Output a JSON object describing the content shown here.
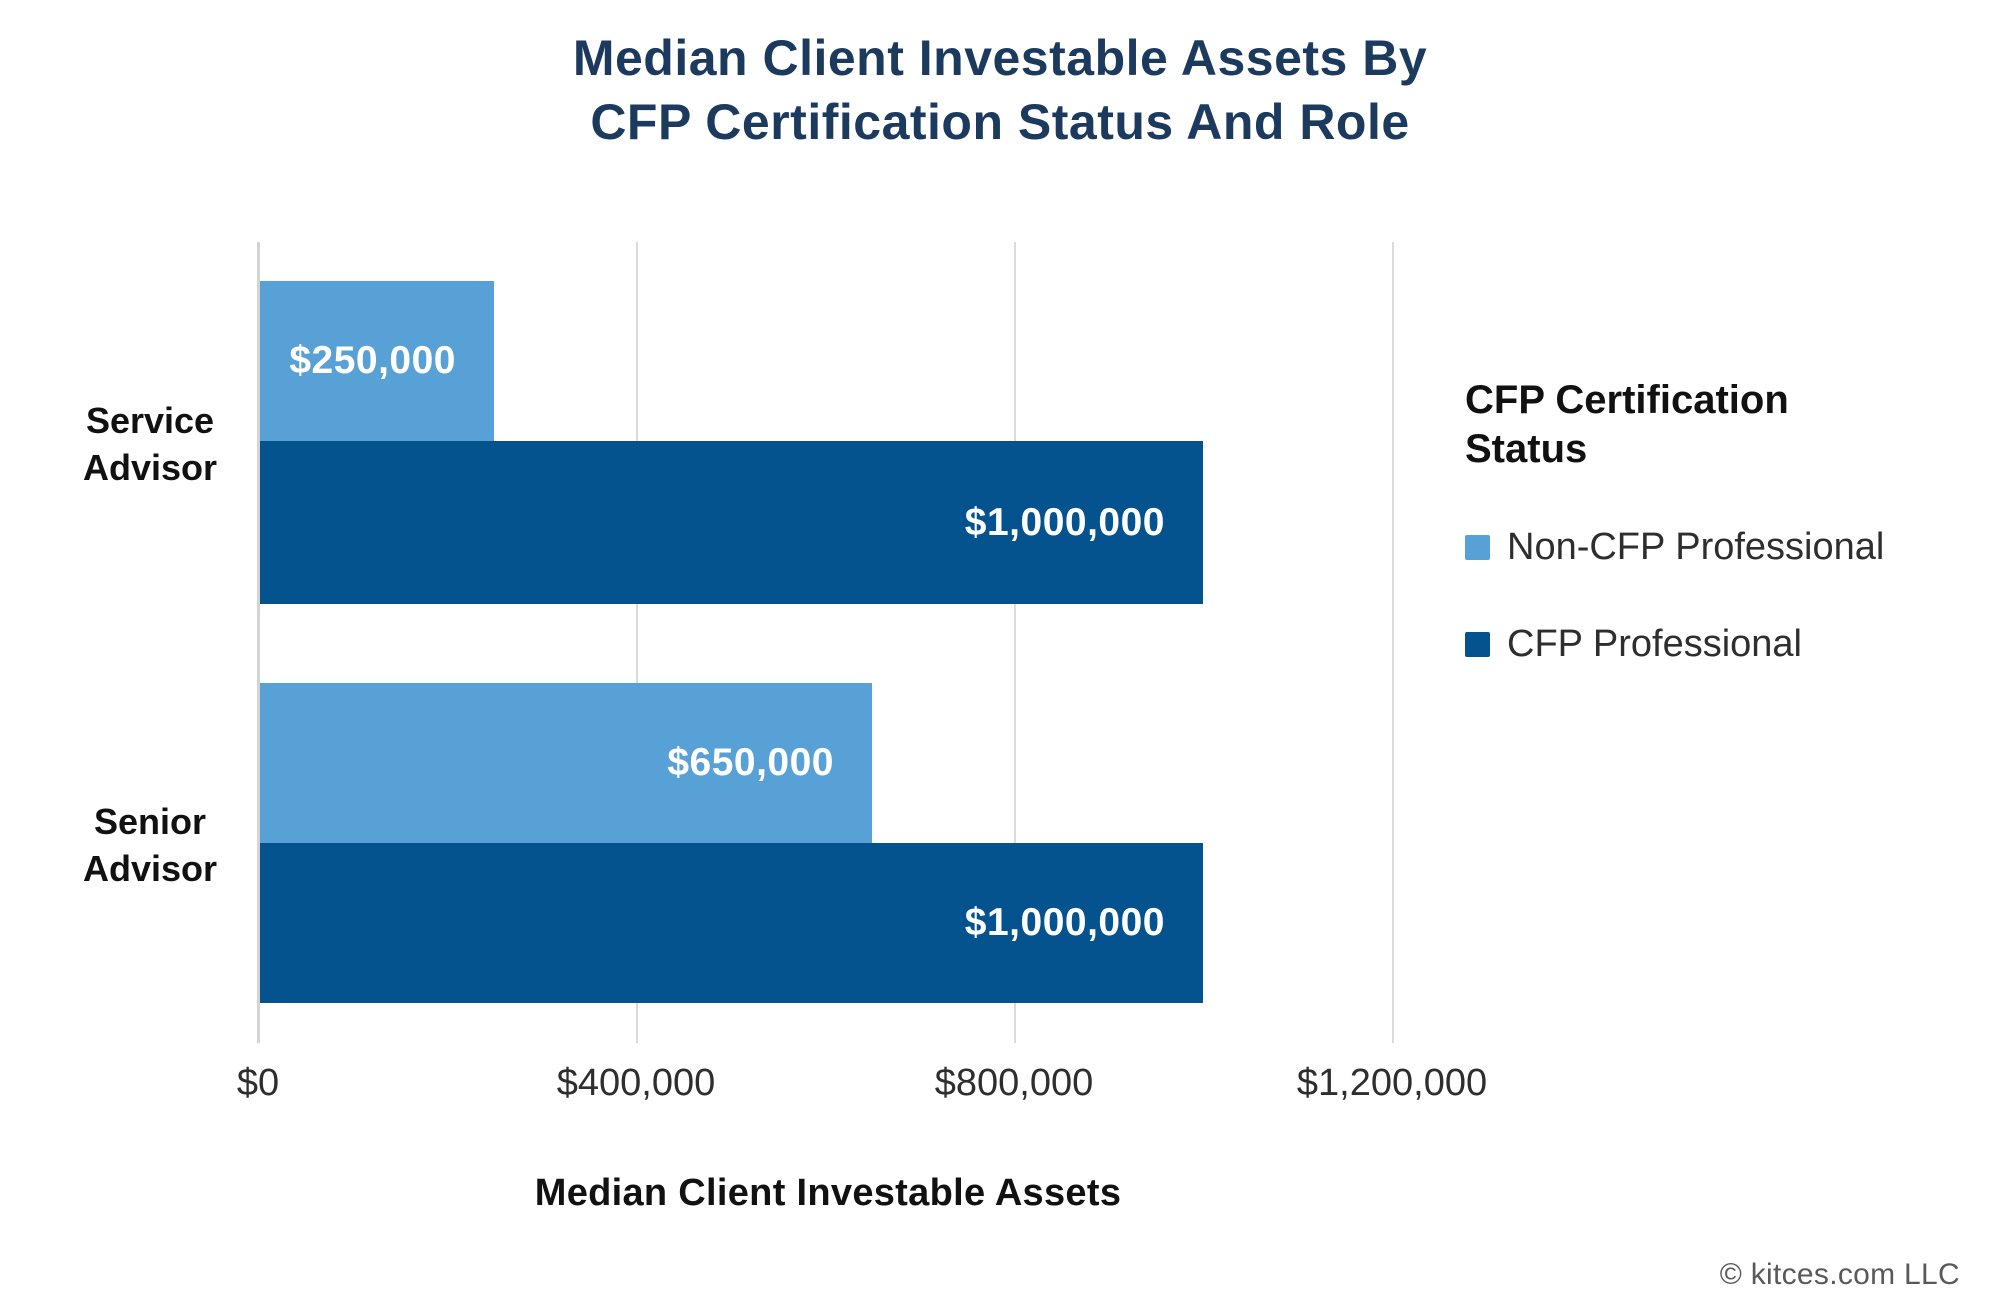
{
  "title": "Median Client Investable Assets By\nCFP Certification Status And Role",
  "chart_data": {
    "type": "bar",
    "orientation": "horizontal",
    "title": "Median Client Investable Assets By CFP Certification Status And Role",
    "categories": [
      "Service Advisor",
      "Senior Advisor"
    ],
    "series": [
      {
        "name": "Non-CFP Professional",
        "color": "#58A1D6",
        "values": [
          250000,
          650000
        ],
        "labels": [
          "$250,000",
          "$650,000"
        ]
      },
      {
        "name": "CFP Professional",
        "color": "#04538F",
        "values": [
          1000000,
          1000000
        ],
        "labels": [
          "$1,000,000",
          "$1,000,000"
        ]
      }
    ],
    "xlabel": "Median Client Investable Assets",
    "ylabel": "",
    "x_ticks": [
      "$0",
      "$400,000",
      "$800,000",
      "$1,200,000"
    ],
    "x_tick_values": [
      0,
      400000,
      800000,
      1200000
    ],
    "xlim": [
      0,
      1270000
    ],
    "grid": true,
    "legend_title": "CFP Certification Status",
    "legend_position": "right",
    "bar_label_color": "#ffffff",
    "title_color": "#1b3a5e"
  },
  "footer": {
    "copyright": "© kitces.com LLC"
  }
}
